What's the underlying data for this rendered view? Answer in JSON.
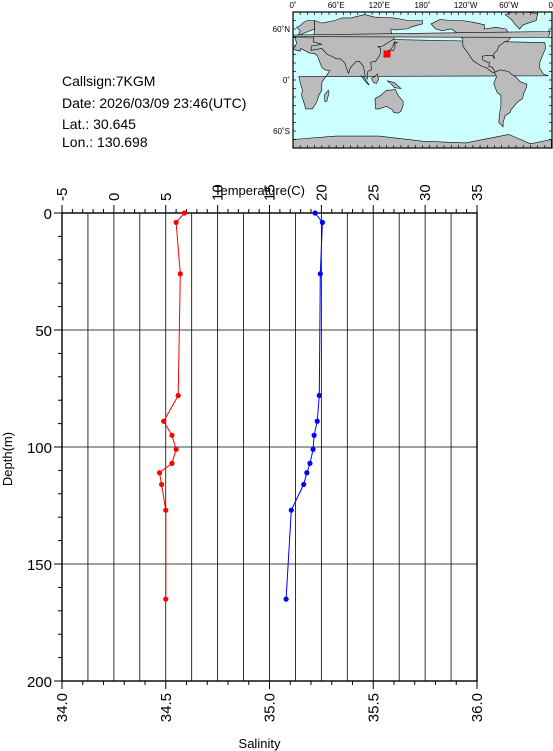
{
  "station": {
    "callsign": "Callsign:7KGM",
    "date": "Date:  2026/03/09 23:46(UTC)",
    "lat": "Lat.:  30.645",
    "lon": "Lon.:  130.698"
  },
  "map": {
    "lon_labels": [
      "0˚",
      "60˚E",
      "120˚E",
      "180˚",
      "120˚W",
      "60˚W",
      "0˚"
    ],
    "lat_labels": [
      "60˚N",
      "0˚",
      "60˚S"
    ],
    "ocean_color": "#ccffff",
    "land_color": "#bbbbbb",
    "marker": {
      "lat": 30.645,
      "lon": 130.698,
      "color": "#ff0000"
    }
  },
  "chart_data": {
    "type": "line",
    "yaxis": {
      "label": "Depth(m)",
      "range": [
        0,
        200
      ],
      "ticks": [
        0,
        50,
        100,
        150,
        200
      ],
      "inverted": true
    },
    "top_axis": {
      "label": "Temperature(C)",
      "range": [
        -5,
        35
      ],
      "ticks": [
        -5,
        0,
        5,
        10,
        15,
        20,
        25,
        30,
        35
      ]
    },
    "bottom_axis": {
      "label": "Salinity",
      "range": [
        34.0,
        36.0
      ],
      "ticks": [
        "34.0",
        "34.5",
        "35.0",
        "35.5",
        "36.0"
      ]
    },
    "grid": true,
    "series": [
      {
        "axis": "bottom",
        "color": "#ff0000",
        "points": [
          [
            34.59,
            0
          ],
          [
            34.55,
            4
          ],
          [
            34.57,
            26
          ],
          [
            34.56,
            78
          ],
          [
            34.49,
            89
          ],
          [
            34.53,
            95
          ],
          [
            34.55,
            101
          ],
          [
            34.53,
            107
          ],
          [
            34.47,
            111
          ],
          [
            34.48,
            116
          ],
          [
            34.5,
            127
          ],
          [
            34.5,
            165
          ]
        ]
      },
      {
        "axis": "top",
        "color": "#0000ff",
        "points": [
          [
            19.4,
            0
          ],
          [
            20.1,
            4
          ],
          [
            19.9,
            26
          ],
          [
            19.8,
            78
          ],
          [
            19.6,
            89
          ],
          [
            19.3,
            95
          ],
          [
            19.2,
            101
          ],
          [
            18.9,
            107
          ],
          [
            18.6,
            111
          ],
          [
            18.3,
            116
          ],
          [
            17.1,
            127
          ],
          [
            16.6,
            165
          ]
        ]
      }
    ]
  }
}
